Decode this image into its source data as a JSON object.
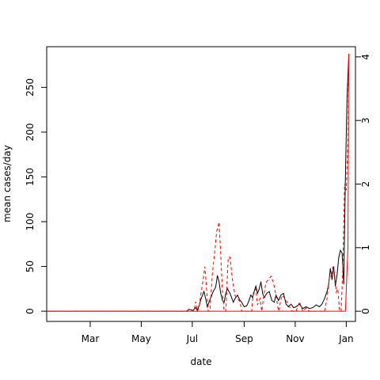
{
  "chart_data": {
    "type": "line",
    "xlabel": "date",
    "ylabel": "mean cases/day",
    "y2label": "",
    "x_ticks": [
      "Mar",
      "May",
      "Jul",
      "Sep",
      "Nov",
      "Jan"
    ],
    "x_tick_dates": [
      "2020-03-01",
      "2020-05-01",
      "2020-07-01",
      "2020-09-01",
      "2020-11-01",
      "2021-01-01"
    ],
    "xlim": [
      "2020-01-09",
      "2021-01-12"
    ],
    "y_ticks": [
      0,
      50,
      100,
      150,
      200,
      250
    ],
    "ylim": [
      -11.4,
      295.4
    ],
    "y2_ticks": [
      0,
      1,
      2,
      3,
      4
    ],
    "y2lim": [
      -0.16,
      4.16
    ],
    "grid": false,
    "legend": "none",
    "series": [
      {
        "axis": "left",
        "color": "#000000",
        "style": "solid",
        "points": [
          [
            "2020-01-09",
            0
          ],
          [
            "2020-06-24",
            0
          ],
          [
            "2020-06-27",
            2
          ],
          [
            "2020-07-02",
            1
          ],
          [
            "2020-07-05",
            4
          ],
          [
            "2020-07-07",
            1
          ],
          [
            "2020-07-09",
            6
          ],
          [
            "2020-07-12",
            15
          ],
          [
            "2020-07-15",
            22
          ],
          [
            "2020-07-17",
            14
          ],
          [
            "2020-07-19",
            5
          ],
          [
            "2020-07-21",
            10
          ],
          [
            "2020-07-23",
            15
          ],
          [
            "2020-07-26",
            22
          ],
          [
            "2020-07-29",
            27
          ],
          [
            "2020-07-31",
            40
          ],
          [
            "2020-08-02",
            33
          ],
          [
            "2020-08-04",
            20
          ],
          [
            "2020-08-06",
            12
          ],
          [
            "2020-08-08",
            10
          ],
          [
            "2020-08-10",
            20
          ],
          [
            "2020-08-12",
            25
          ],
          [
            "2020-08-15",
            20
          ],
          [
            "2020-08-17",
            15
          ],
          [
            "2020-08-19",
            10
          ],
          [
            "2020-08-21",
            14
          ],
          [
            "2020-08-24",
            18
          ],
          [
            "2020-08-27",
            12
          ],
          [
            "2020-08-29",
            10
          ],
          [
            "2020-09-01",
            5
          ],
          [
            "2020-09-04",
            6
          ],
          [
            "2020-09-06",
            10
          ],
          [
            "2020-09-09",
            18
          ],
          [
            "2020-09-11",
            15
          ],
          [
            "2020-09-13",
            22
          ],
          [
            "2020-09-15",
            28
          ],
          [
            "2020-09-17",
            20
          ],
          [
            "2020-09-19",
            25
          ],
          [
            "2020-09-21",
            33
          ],
          [
            "2020-09-23",
            20
          ],
          [
            "2020-09-25",
            15
          ],
          [
            "2020-09-28",
            20
          ],
          [
            "2020-10-01",
            22
          ],
          [
            "2020-10-04",
            12
          ],
          [
            "2020-10-07",
            10
          ],
          [
            "2020-10-09",
            18
          ],
          [
            "2020-10-12",
            12
          ],
          [
            "2020-10-15",
            18
          ],
          [
            "2020-10-18",
            20
          ],
          [
            "2020-10-21",
            8
          ],
          [
            "2020-10-24",
            5
          ],
          [
            "2020-10-27",
            8
          ],
          [
            "2020-10-30",
            4
          ],
          [
            "2020-11-02",
            5
          ],
          [
            "2020-11-06",
            8
          ],
          [
            "2020-11-10",
            3
          ],
          [
            "2020-11-14",
            5
          ],
          [
            "2020-11-18",
            3
          ],
          [
            "2020-11-22",
            4
          ],
          [
            "2020-11-26",
            7
          ],
          [
            "2020-11-30",
            5
          ],
          [
            "2020-12-03",
            8
          ],
          [
            "2020-12-06",
            14
          ],
          [
            "2020-12-09",
            22
          ],
          [
            "2020-12-11",
            30
          ],
          [
            "2020-12-13",
            48
          ],
          [
            "2020-12-15",
            35
          ],
          [
            "2020-12-17",
            50
          ],
          [
            "2020-12-19",
            28
          ],
          [
            "2020-12-21",
            40
          ],
          [
            "2020-12-23",
            60
          ],
          [
            "2020-12-25",
            68
          ],
          [
            "2020-12-27",
            65
          ],
          [
            "2020-12-29",
            30
          ],
          [
            "2020-12-31",
            150
          ],
          [
            "2021-01-02",
            240
          ],
          [
            "2021-01-04",
            285
          ]
        ]
      },
      {
        "axis": "right",
        "color": "#ff0000",
        "style": "dashed",
        "points": [
          [
            "2020-01-09",
            0
          ],
          [
            "2020-07-03",
            0
          ],
          [
            "2020-07-05",
            0.15
          ],
          [
            "2020-07-07",
            0
          ],
          [
            "2020-07-09",
            0.05
          ],
          [
            "2020-07-11",
            0.25
          ],
          [
            "2020-07-14",
            0.5
          ],
          [
            "2020-07-16",
            0.7
          ],
          [
            "2020-07-18",
            0.35
          ],
          [
            "2020-07-20",
            0
          ],
          [
            "2020-07-22",
            0
          ],
          [
            "2020-07-25",
            0.6
          ],
          [
            "2020-07-28",
            0.95
          ],
          [
            "2020-07-30",
            1.25
          ],
          [
            "2020-08-02",
            1.4
          ],
          [
            "2020-08-04",
            0.9
          ],
          [
            "2020-08-06",
            0.3
          ],
          [
            "2020-08-08",
            0
          ],
          [
            "2020-08-10",
            0
          ],
          [
            "2020-08-13",
            0.85
          ],
          [
            "2020-08-15",
            0.85
          ],
          [
            "2020-08-18",
            0.5
          ],
          [
            "2020-08-21",
            0.25
          ],
          [
            "2020-08-24",
            0.2
          ],
          [
            "2020-08-27",
            0.15
          ],
          [
            "2020-08-29",
            0
          ],
          [
            "2020-09-10",
            0
          ],
          [
            "2020-09-12",
            0.3
          ],
          [
            "2020-09-15",
            0.35
          ],
          [
            "2020-09-17",
            0.1
          ],
          [
            "2020-09-20",
            0.2
          ],
          [
            "2020-09-22",
            0
          ],
          [
            "2020-09-25",
            0.3
          ],
          [
            "2020-09-27",
            0.45
          ],
          [
            "2020-10-03",
            0.55
          ],
          [
            "2020-10-06",
            0.45
          ],
          [
            "2020-10-09",
            0.25
          ],
          [
            "2020-10-12",
            0
          ],
          [
            "2020-10-16",
            0.25
          ],
          [
            "2020-10-20",
            0.2
          ],
          [
            "2020-10-24",
            0.1
          ],
          [
            "2020-10-28",
            0
          ],
          [
            "2020-11-02",
            0
          ],
          [
            "2020-11-06",
            0.15
          ],
          [
            "2020-11-10",
            0
          ],
          [
            "2020-11-14",
            0.05
          ],
          [
            "2020-11-18",
            0
          ],
          [
            "2020-12-06",
            0
          ],
          [
            "2020-12-09",
            0.2
          ],
          [
            "2020-12-12",
            0.55
          ],
          [
            "2020-12-14",
            0.55
          ],
          [
            "2020-12-16",
            0.7
          ],
          [
            "2020-12-18",
            0.6
          ],
          [
            "2020-12-20",
            0.3
          ],
          [
            "2020-12-22",
            0.35
          ],
          [
            "2020-12-24",
            0
          ],
          [
            "2020-12-26",
            0
          ],
          [
            "2020-12-28",
            0.7
          ],
          [
            "2020-12-30",
            2.0
          ],
          [
            "2021-01-01",
            1.9
          ],
          [
            "2021-01-03",
            2.7
          ],
          [
            "2021-01-04",
            4.05
          ]
        ]
      },
      {
        "axis": "right",
        "color": "#ff0000",
        "style": "solid",
        "points": [
          [
            "2020-01-09",
            0
          ],
          [
            "2020-12-31",
            0
          ],
          [
            "2021-01-03",
            1.0
          ],
          [
            "2021-01-04",
            4.05
          ]
        ]
      }
    ]
  }
}
